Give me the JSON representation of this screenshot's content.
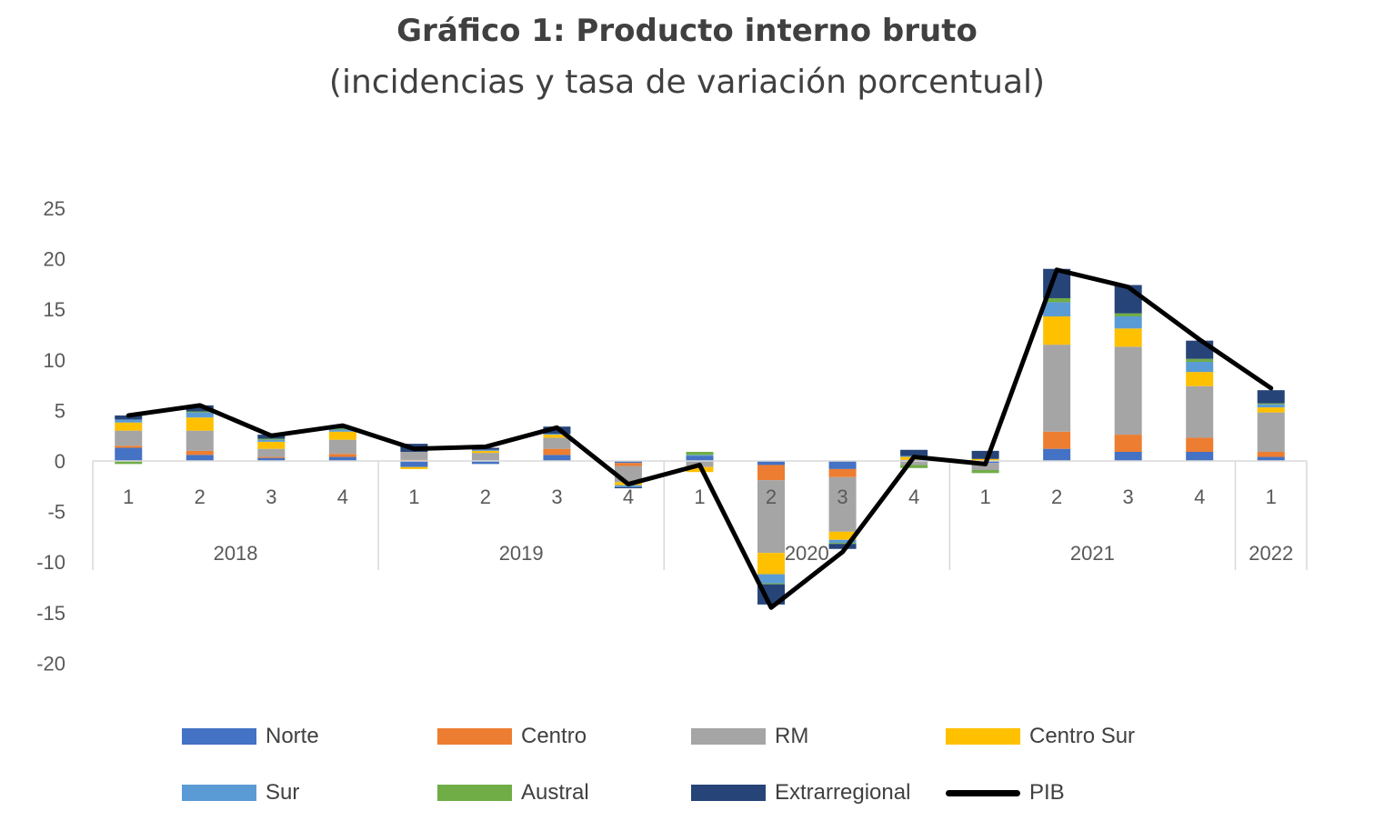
{
  "chart_data": {
    "type": "bar",
    "title": "Gráfico 1: Producto interno bruto",
    "subtitle": "(incidencias y tasa de variación porcentual)",
    "xlabel": "",
    "ylabel": "",
    "ylim": [
      -20,
      25
    ],
    "yticks": [
      25,
      20,
      15,
      10,
      5,
      0,
      -5,
      -10,
      -15,
      -20
    ],
    "stacked": true,
    "categories": [
      "1",
      "2",
      "3",
      "4",
      "1",
      "2",
      "3",
      "4",
      "1",
      "2",
      "3",
      "4",
      "1",
      "2",
      "3",
      "4",
      "1"
    ],
    "years": [
      {
        "label": "2018",
        "count": 4
      },
      {
        "label": "2019",
        "count": 4
      },
      {
        "label": "2020",
        "count": 4
      },
      {
        "label": "2021",
        "count": 4
      },
      {
        "label": "2022",
        "count": 1
      }
    ],
    "series": [
      {
        "name": "Norte",
        "color": "#4472C4",
        "values": [
          1.3,
          0.6,
          0.3,
          0.4,
          -0.6,
          -0.3,
          0.6,
          -0.2,
          0.5,
          -0.4,
          -0.8,
          0.1,
          -0.2,
          1.2,
          0.9,
          0.9,
          0.4
        ]
      },
      {
        "name": "Centro",
        "color": "#ED7D31",
        "values": [
          0.2,
          0.4,
          0.1,
          0.3,
          0.1,
          0.0,
          0.6,
          -0.3,
          0.0,
          -1.5,
          -0.8,
          0.0,
          0.0,
          1.7,
          1.7,
          1.4,
          0.5
        ]
      },
      {
        "name": "RM",
        "color": "#A5A5A5",
        "values": [
          1.5,
          2.0,
          0.8,
          1.4,
          0.8,
          0.8,
          1.1,
          -1.6,
          -0.6,
          -7.2,
          -5.4,
          -0.4,
          -0.7,
          8.6,
          8.7,
          5.1,
          3.9
        ]
      },
      {
        "name": "Centro Sur",
        "color": "#FFC000",
        "values": [
          0.8,
          1.3,
          0.7,
          0.8,
          -0.2,
          0.2,
          0.3,
          -0.3,
          -0.5,
          -2.1,
          -0.8,
          0.3,
          0.2,
          2.8,
          1.8,
          1.4,
          0.5
        ]
      },
      {
        "name": "Sur",
        "color": "#5B9BD5",
        "values": [
          0.3,
          0.5,
          0.2,
          0.2,
          0.0,
          0.1,
          0.1,
          -0.2,
          0.1,
          -0.9,
          -0.3,
          0.1,
          0.0,
          1.4,
          1.2,
          1.0,
          0.3
        ]
      },
      {
        "name": "Austral",
        "color": "#70AD47",
        "values": [
          -0.3,
          0.1,
          0.1,
          0.1,
          0.0,
          0.0,
          0.0,
          0.0,
          0.3,
          -0.1,
          -0.1,
          -0.3,
          -0.3,
          0.4,
          0.3,
          0.3,
          0.1
        ]
      },
      {
        "name": "Extrarregional",
        "color": "#264478",
        "values": [
          0.4,
          0.6,
          0.4,
          0.1,
          0.8,
          0.2,
          0.7,
          -0.1,
          0.0,
          -2.0,
          -0.5,
          0.6,
          0.8,
          2.9,
          2.8,
          1.8,
          1.3
        ]
      }
    ],
    "line": {
      "name": "PIB",
      "color": "#000000",
      "values": [
        4.5,
        5.5,
        2.5,
        3.5,
        1.2,
        1.4,
        3.3,
        -2.3,
        -0.4,
        -14.5,
        -9.0,
        0.4,
        -0.3,
        18.9,
        17.2,
        12.0,
        7.2
      ]
    },
    "legend": [
      {
        "name": "Norte",
        "color": "#4472C4",
        "kind": "bar"
      },
      {
        "name": "Centro",
        "color": "#ED7D31",
        "kind": "bar"
      },
      {
        "name": "RM",
        "color": "#A5A5A5",
        "kind": "bar"
      },
      {
        "name": "Centro Sur",
        "color": "#FFC000",
        "kind": "bar"
      },
      {
        "name": "Sur",
        "color": "#5B9BD5",
        "kind": "bar"
      },
      {
        "name": "Austral",
        "color": "#70AD47",
        "kind": "bar"
      },
      {
        "name": "Extrarregional",
        "color": "#264478",
        "kind": "bar"
      },
      {
        "name": "PIB",
        "color": "#000000",
        "kind": "line"
      }
    ],
    "legend_position": "bottom",
    "grid": false
  }
}
